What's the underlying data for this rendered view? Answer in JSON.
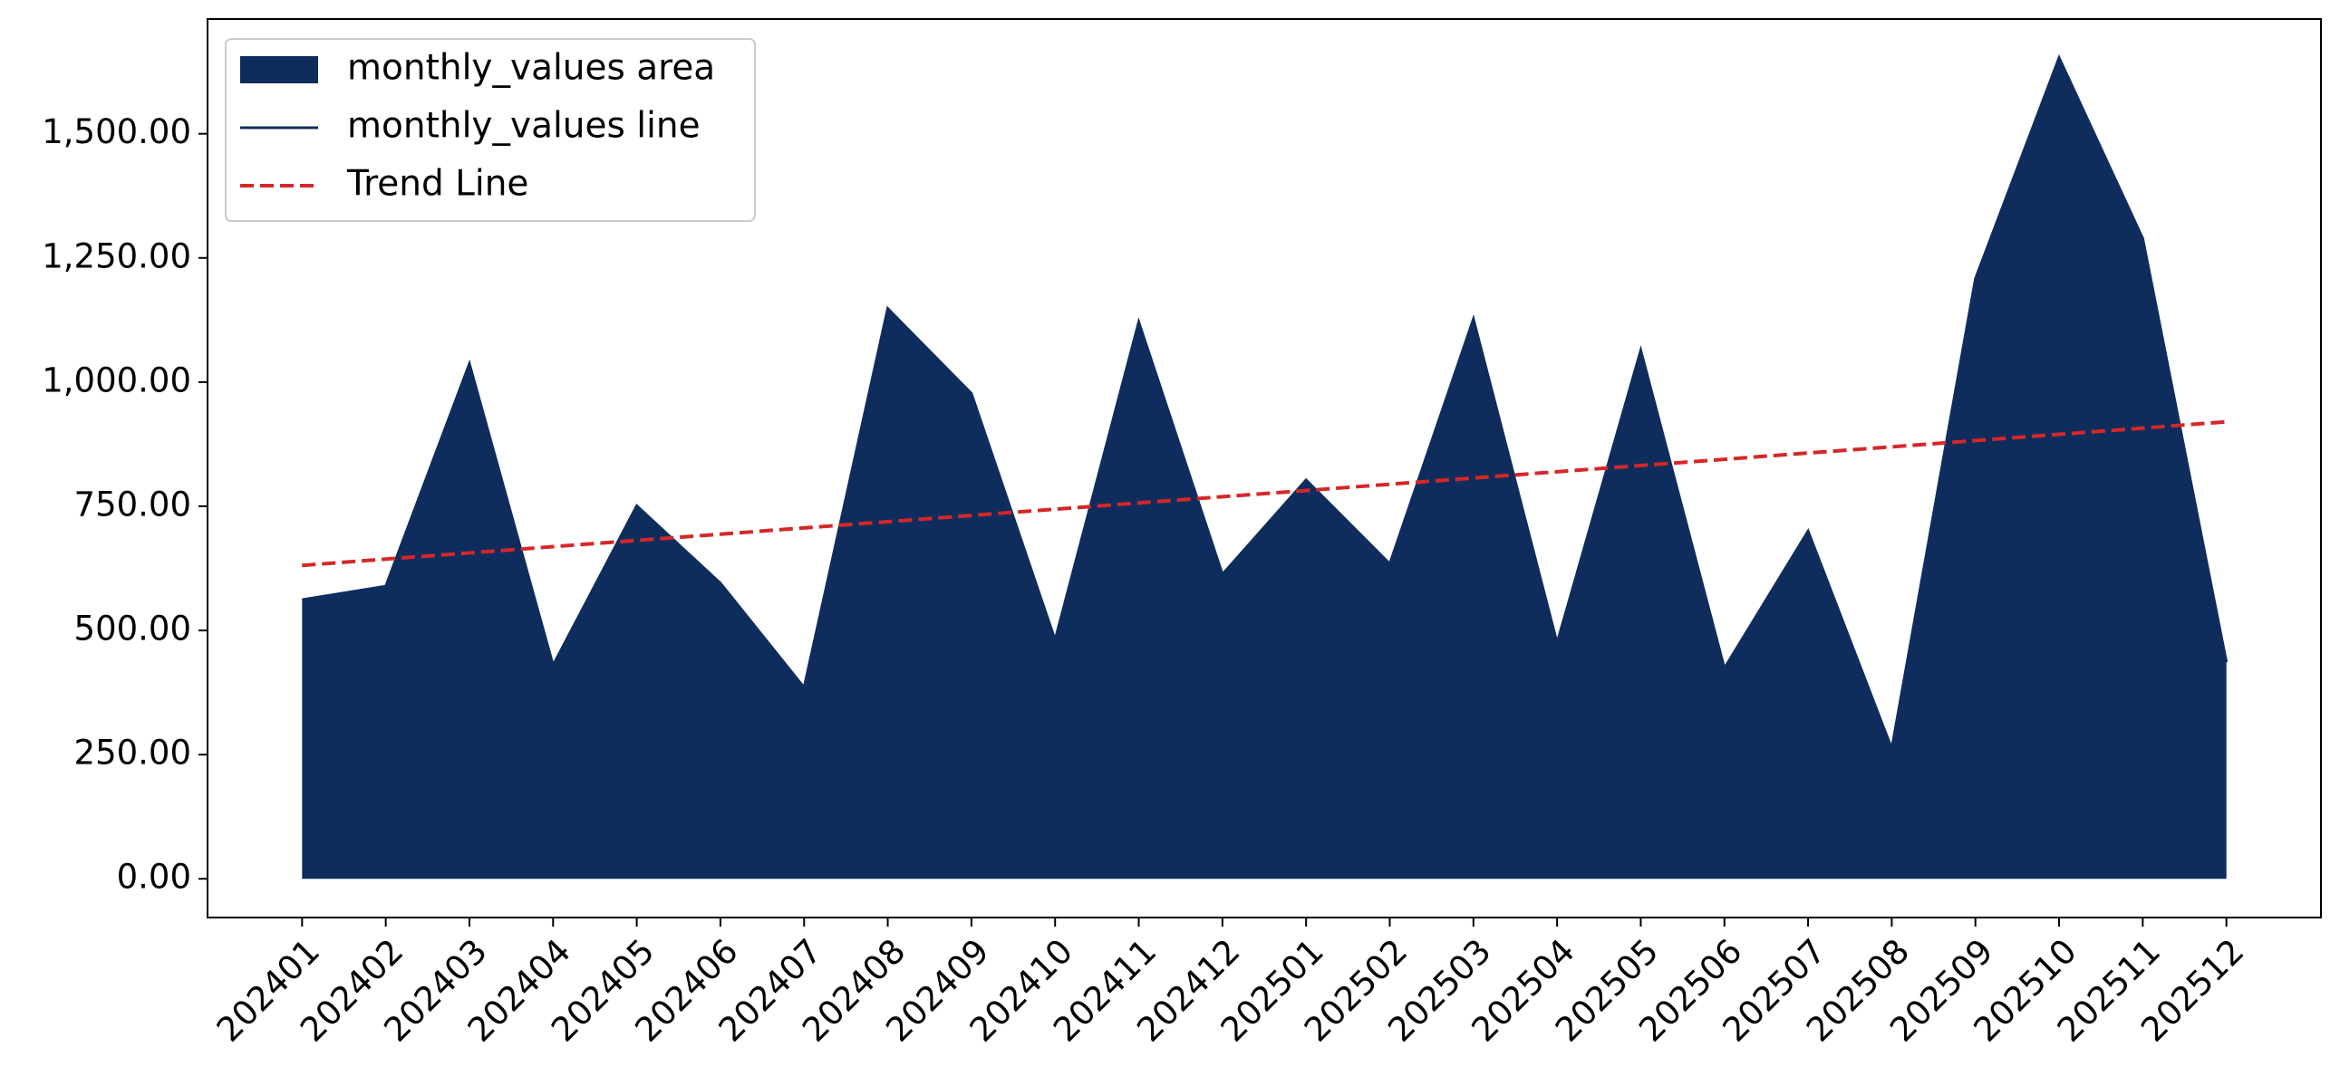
{
  "chart_data": {
    "type": "area",
    "categories": [
      "202401",
      "202402",
      "202403",
      "202404",
      "202405",
      "202406",
      "202407",
      "202408",
      "202409",
      "202410",
      "202411",
      "202412",
      "202501",
      "202502",
      "202503",
      "202504",
      "202505",
      "202506",
      "202507",
      "202508",
      "202509",
      "202510",
      "202511",
      "202512"
    ],
    "series": [
      {
        "name": "monthly_values area",
        "color": "#0f2d5c",
        "values": [
          562,
          589,
          1037,
          430,
          751,
          595,
          385,
          1148,
          977,
          481,
          1121,
          613,
          803,
          634,
          1127,
          475,
          1064,
          424,
          700,
          262,
          1208,
          1653,
          1289,
          436
        ]
      },
      {
        "name": "monthly_values line",
        "color": "#0f2d5c",
        "values": [
          562,
          589,
          1037,
          430,
          751,
          595,
          385,
          1148,
          977,
          481,
          1121,
          613,
          803,
          634,
          1127,
          475,
          1064,
          424,
          700,
          262,
          1208,
          1653,
          1289,
          436
        ]
      },
      {
        "name": "Trend Line",
        "color": "#d62728",
        "dashed": true,
        "values": [
          631,
          643.6,
          656.1,
          668.7,
          681.3,
          693.8,
          706.4,
          719,
          731.5,
          744.1,
          756.7,
          769.2,
          781.8,
          794.3,
          806.9,
          819.5,
          832,
          844.6,
          857.2,
          869.7,
          882.3,
          894.9,
          907.4,
          920
        ]
      }
    ],
    "ylim": [
      -78,
      1731
    ],
    "yticks": [
      {
        "value": 0,
        "label": "0.00"
      },
      {
        "value": 250,
        "label": "250.00"
      },
      {
        "value": 500,
        "label": "500.00"
      },
      {
        "value": 750,
        "label": "750.00"
      },
      {
        "value": 1000,
        "label": "1,000.00"
      },
      {
        "value": 1250,
        "label": "1,250.00"
      },
      {
        "value": 1500,
        "label": "1,500.00"
      }
    ],
    "legend": "upper left",
    "grid": false
  }
}
